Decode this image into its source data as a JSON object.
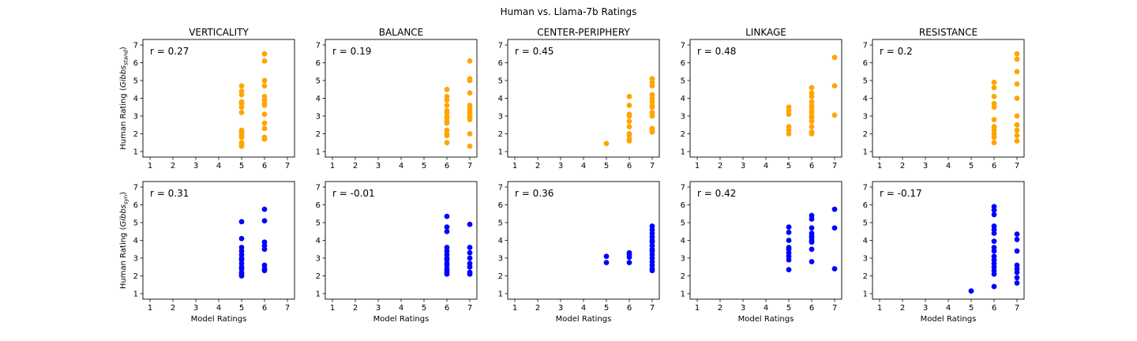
{
  "figure": {
    "title": "Human vs. Llama-7b Ratings"
  },
  "colors": {
    "top_row": "#FFA500",
    "bottom_row": "#0000FF",
    "axis": "#000000",
    "background": "#FFFFFF"
  },
  "chart_data": [
    {
      "type": "scatter",
      "row": "stand",
      "title": "VERTICALITY",
      "annotation": "r = 0.27",
      "ylabel_base": "Human Rating (",
      "ylabel_italic": "Gibbs",
      "ylabel_sub": "stand",
      "ylabel_end": ")",
      "xlabel": "",
      "xlim": [
        1,
        7
      ],
      "ylim": [
        1,
        7
      ],
      "xticks": [
        "1",
        "2",
        "3",
        "4",
        "5",
        "6",
        "7"
      ],
      "yticks": [
        "1",
        "2",
        "3",
        "4",
        "5",
        "6",
        "7"
      ],
      "points": [
        [
          5,
          4.7
        ],
        [
          5,
          4.4
        ],
        [
          5,
          4.2
        ],
        [
          5,
          3.8
        ],
        [
          5,
          3.7
        ],
        [
          5,
          3.5
        ],
        [
          5,
          3.2
        ],
        [
          5,
          2.2
        ],
        [
          5,
          2.1
        ],
        [
          5,
          2.0
        ],
        [
          5,
          1.9
        ],
        [
          5,
          1.8
        ],
        [
          5,
          1.5
        ],
        [
          5,
          1.4
        ],
        [
          5,
          1.3
        ],
        [
          6,
          6.5
        ],
        [
          6,
          6.1
        ],
        [
          6,
          5.0
        ],
        [
          6,
          4.7
        ],
        [
          6,
          4.1
        ],
        [
          6,
          3.9
        ],
        [
          6,
          3.7
        ],
        [
          6,
          3.6
        ],
        [
          6,
          3.1
        ],
        [
          6,
          2.6
        ],
        [
          6,
          2.3
        ],
        [
          6,
          1.8
        ],
        [
          6,
          1.7
        ]
      ]
    },
    {
      "type": "scatter",
      "row": "stand",
      "title": "BALANCE",
      "annotation": "r = 0.19",
      "xlabel": "",
      "xlim": [
        1,
        7
      ],
      "ylim": [
        1,
        7
      ],
      "xticks": [
        "1",
        "2",
        "3",
        "4",
        "5",
        "6",
        "7"
      ],
      "yticks": [
        "1",
        "2",
        "3",
        "4",
        "5",
        "6",
        "7"
      ],
      "points": [
        [
          6,
          4.5
        ],
        [
          6,
          4.1
        ],
        [
          6,
          3.9
        ],
        [
          6,
          3.6
        ],
        [
          6,
          3.3
        ],
        [
          6,
          3.2
        ],
        [
          6,
          3.0
        ],
        [
          6,
          2.9
        ],
        [
          6,
          2.7
        ],
        [
          6,
          2.6
        ],
        [
          6,
          2.2
        ],
        [
          6,
          2.0
        ],
        [
          6,
          1.9
        ],
        [
          6,
          1.5
        ],
        [
          7,
          6.1
        ],
        [
          7,
          5.1
        ],
        [
          7,
          5.0
        ],
        [
          7,
          4.3
        ],
        [
          7,
          3.6
        ],
        [
          7,
          3.4
        ],
        [
          7,
          3.2
        ],
        [
          7,
          3.0
        ],
        [
          7,
          2.9
        ],
        [
          7,
          2.8
        ],
        [
          7,
          2.0
        ],
        [
          7,
          1.3
        ]
      ]
    },
    {
      "type": "scatter",
      "row": "stand",
      "title": "CENTER-PERIPHERY",
      "annotation": "r = 0.45",
      "xlabel": "",
      "xlim": [
        1,
        7
      ],
      "ylim": [
        1,
        7
      ],
      "xticks": [
        "1",
        "2",
        "3",
        "4",
        "5",
        "6",
        "7"
      ],
      "yticks": [
        "1",
        "2",
        "3",
        "4",
        "5",
        "6",
        "7"
      ],
      "points": [
        [
          5,
          1.45
        ],
        [
          6,
          4.1
        ],
        [
          6,
          3.6
        ],
        [
          6,
          3.1
        ],
        [
          6,
          3.0
        ],
        [
          6,
          2.7
        ],
        [
          6,
          2.4
        ],
        [
          6,
          2.0
        ],
        [
          6,
          1.9
        ],
        [
          6,
          1.7
        ],
        [
          6,
          1.6
        ],
        [
          7,
          5.1
        ],
        [
          7,
          4.9
        ],
        [
          7,
          4.7
        ],
        [
          7,
          4.2
        ],
        [
          7,
          4.0
        ],
        [
          7,
          3.8
        ],
        [
          7,
          3.6
        ],
        [
          7,
          3.5
        ],
        [
          7,
          3.2
        ],
        [
          7,
          3.0
        ],
        [
          7,
          2.3
        ],
        [
          7,
          2.2
        ],
        [
          7,
          2.1
        ]
      ]
    },
    {
      "type": "scatter",
      "row": "stand",
      "title": "LINKAGE",
      "annotation": "r = 0.48",
      "xlabel": "",
      "xlim": [
        1,
        7
      ],
      "ylim": [
        1,
        7
      ],
      "xticks": [
        "1",
        "2",
        "3",
        "4",
        "5",
        "6",
        "7"
      ],
      "yticks": [
        "1",
        "2",
        "3",
        "4",
        "5",
        "6",
        "7"
      ],
      "points": [
        [
          5,
          3.5
        ],
        [
          5,
          3.3
        ],
        [
          5,
          3.1
        ],
        [
          5,
          2.4
        ],
        [
          5,
          2.2
        ],
        [
          5,
          2.0
        ],
        [
          6,
          4.6
        ],
        [
          6,
          4.3
        ],
        [
          6,
          4.1
        ],
        [
          6,
          3.8
        ],
        [
          6,
          3.6
        ],
        [
          6,
          3.5
        ],
        [
          6,
          3.3
        ],
        [
          6,
          3.2
        ],
        [
          6,
          3.0
        ],
        [
          6,
          2.9
        ],
        [
          6,
          2.7
        ],
        [
          6,
          2.4
        ],
        [
          6,
          2.1
        ],
        [
          6,
          2.0
        ],
        [
          7,
          6.3
        ],
        [
          7,
          4.7
        ],
        [
          7,
          3.05
        ]
      ]
    },
    {
      "type": "scatter",
      "row": "stand",
      "title": "RESISTANCE",
      "annotation": "r = 0.2",
      "xlabel": "",
      "xlim": [
        1,
        7
      ],
      "ylim": [
        1,
        7
      ],
      "xticks": [
        "1",
        "2",
        "3",
        "4",
        "5",
        "6",
        "7"
      ],
      "yticks": [
        "1",
        "2",
        "3",
        "4",
        "5",
        "6",
        "7"
      ],
      "points": [
        [
          6,
          4.9
        ],
        [
          6,
          4.6
        ],
        [
          6,
          4.1
        ],
        [
          6,
          3.7
        ],
        [
          6,
          3.5
        ],
        [
          6,
          2.8
        ],
        [
          6,
          2.4
        ],
        [
          6,
          2.2
        ],
        [
          6,
          2.0
        ],
        [
          6,
          1.8
        ],
        [
          6,
          1.5
        ],
        [
          7,
          6.5
        ],
        [
          7,
          6.2
        ],
        [
          7,
          5.5
        ],
        [
          7,
          4.8
        ],
        [
          7,
          4.0
        ],
        [
          7,
          3.0
        ],
        [
          7,
          2.5
        ],
        [
          7,
          2.2
        ],
        [
          7,
          1.9
        ],
        [
          7,
          1.6
        ]
      ]
    },
    {
      "type": "scatter",
      "row": "syn",
      "title": "",
      "annotation": "r = 0.31",
      "ylabel_base": "Human Rating (",
      "ylabel_italic": "Gibbs",
      "ylabel_sub": "syn",
      "ylabel_end": ")",
      "xlabel": "Model Ratings",
      "xlim": [
        1,
        7
      ],
      "ylim": [
        1,
        7
      ],
      "xticks": [
        "1",
        "2",
        "3",
        "4",
        "5",
        "6",
        "7"
      ],
      "yticks": [
        "1",
        "2",
        "3",
        "4",
        "5",
        "6",
        "7"
      ],
      "points": [
        [
          5,
          5.05
        ],
        [
          5,
          4.1
        ],
        [
          5,
          3.6
        ],
        [
          5,
          3.4
        ],
        [
          5,
          3.2
        ],
        [
          5,
          3.0
        ],
        [
          5,
          2.9
        ],
        [
          5,
          2.7
        ],
        [
          5,
          2.5
        ],
        [
          5,
          2.4
        ],
        [
          5,
          2.2
        ],
        [
          5,
          2.1
        ],
        [
          5,
          2.0
        ],
        [
          6,
          5.75
        ],
        [
          6,
          5.1
        ],
        [
          6,
          3.9
        ],
        [
          6,
          3.7
        ],
        [
          6,
          3.5
        ],
        [
          6,
          2.6
        ],
        [
          6,
          2.4
        ],
        [
          6,
          2.3
        ]
      ]
    },
    {
      "type": "scatter",
      "row": "syn",
      "title": "",
      "annotation": "r = -0.01",
      "xlabel": "Model Ratings",
      "xlim": [
        1,
        7
      ],
      "ylim": [
        1,
        7
      ],
      "xticks": [
        "1",
        "2",
        "3",
        "4",
        "5",
        "6",
        "7"
      ],
      "yticks": [
        "1",
        "2",
        "3",
        "4",
        "5",
        "6",
        "7"
      ],
      "points": [
        [
          6,
          5.35
        ],
        [
          6,
          4.75
        ],
        [
          6,
          4.5
        ],
        [
          6,
          3.6
        ],
        [
          6,
          3.4
        ],
        [
          6,
          3.2
        ],
        [
          6,
          3.0
        ],
        [
          6,
          2.9
        ],
        [
          6,
          2.7
        ],
        [
          6,
          2.6
        ],
        [
          6,
          2.4
        ],
        [
          6,
          2.3
        ],
        [
          6,
          2.2
        ],
        [
          6,
          2.1
        ],
        [
          7,
          4.9
        ],
        [
          7,
          3.6
        ],
        [
          7,
          3.3
        ],
        [
          7,
          3.0
        ],
        [
          7,
          2.7
        ],
        [
          7,
          2.5
        ],
        [
          7,
          2.2
        ],
        [
          7,
          2.1
        ]
      ]
    },
    {
      "type": "scatter",
      "row": "syn",
      "title": "",
      "annotation": "r = 0.36",
      "xlabel": "Model Ratings",
      "xlim": [
        1,
        7
      ],
      "ylim": [
        1,
        7
      ],
      "xticks": [
        "1",
        "2",
        "3",
        "4",
        "5",
        "6",
        "7"
      ],
      "yticks": [
        "1",
        "2",
        "3",
        "4",
        "5",
        "6",
        "7"
      ],
      "points": [
        [
          5,
          3.1
        ],
        [
          5,
          2.75
        ],
        [
          6,
          3.3
        ],
        [
          6,
          3.2
        ],
        [
          6,
          3.05
        ],
        [
          6,
          2.75
        ],
        [
          7,
          4.8
        ],
        [
          7,
          4.6
        ],
        [
          7,
          4.4
        ],
        [
          7,
          4.2
        ],
        [
          7,
          4.0
        ],
        [
          7,
          3.9
        ],
        [
          7,
          3.7
        ],
        [
          7,
          3.5
        ],
        [
          7,
          3.4
        ],
        [
          7,
          3.2
        ],
        [
          7,
          3.0
        ],
        [
          7,
          2.8
        ],
        [
          7,
          2.6
        ],
        [
          7,
          2.4
        ],
        [
          7,
          2.3
        ]
      ]
    },
    {
      "type": "scatter",
      "row": "syn",
      "title": "",
      "annotation": "r = 0.42",
      "xlabel": "Model Ratings",
      "xlim": [
        1,
        7
      ],
      "ylim": [
        1,
        7
      ],
      "xticks": [
        "1",
        "2",
        "3",
        "4",
        "5",
        "6",
        "7"
      ],
      "yticks": [
        "1",
        "2",
        "3",
        "4",
        "5",
        "6",
        "7"
      ],
      "points": [
        [
          5,
          4.75
        ],
        [
          5,
          4.45
        ],
        [
          5,
          4.0
        ],
        [
          5,
          3.6
        ],
        [
          5,
          3.5
        ],
        [
          5,
          3.3
        ],
        [
          5,
          3.1
        ],
        [
          5,
          2.9
        ],
        [
          5,
          2.35
        ],
        [
          6,
          5.4
        ],
        [
          6,
          5.2
        ],
        [
          6,
          4.7
        ],
        [
          6,
          4.4
        ],
        [
          6,
          4.25
        ],
        [
          6,
          4.15
        ],
        [
          6,
          4.0
        ],
        [
          6,
          3.9
        ],
        [
          6,
          3.5
        ],
        [
          6,
          2.8
        ],
        [
          7,
          5.75
        ],
        [
          7,
          4.7
        ],
        [
          7,
          2.4
        ]
      ]
    },
    {
      "type": "scatter",
      "row": "syn",
      "title": "",
      "annotation": "r = -0.17",
      "xlabel": "Model Ratings",
      "xlim": [
        1,
        7
      ],
      "ylim": [
        1,
        7
      ],
      "xticks": [
        "1",
        "2",
        "3",
        "4",
        "5",
        "6",
        "7"
      ],
      "yticks": [
        "1",
        "2",
        "3",
        "4",
        "5",
        "6",
        "7"
      ],
      "points": [
        [
          5,
          1.15
        ],
        [
          6,
          5.9
        ],
        [
          6,
          5.7
        ],
        [
          6,
          5.45
        ],
        [
          6,
          4.8
        ],
        [
          6,
          4.6
        ],
        [
          6,
          4.4
        ],
        [
          6,
          3.95
        ],
        [
          6,
          3.6
        ],
        [
          6,
          3.4
        ],
        [
          6,
          3.1
        ],
        [
          6,
          2.9
        ],
        [
          6,
          2.7
        ],
        [
          6,
          2.5
        ],
        [
          6,
          2.3
        ],
        [
          6,
          2.1
        ],
        [
          6,
          1.4
        ],
        [
          7,
          4.35
        ],
        [
          7,
          4.05
        ],
        [
          7,
          3.4
        ],
        [
          7,
          2.6
        ],
        [
          7,
          2.4
        ],
        [
          7,
          2.2
        ],
        [
          7,
          1.9
        ],
        [
          7,
          1.6
        ]
      ]
    }
  ]
}
